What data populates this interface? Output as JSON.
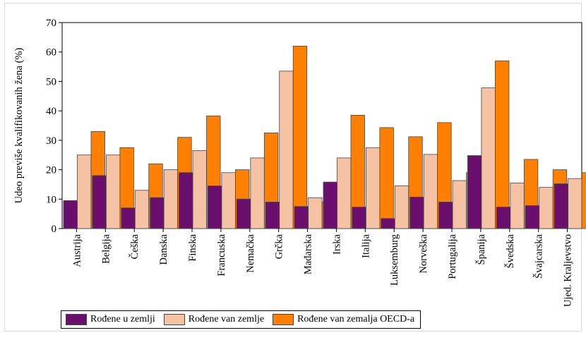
{
  "chart_data": {
    "type": "bar",
    "ylabel": "Udeo previše kvalifikovanih žena (%)",
    "ylim": [
      0,
      70
    ],
    "yticks": [
      0,
      10,
      20,
      30,
      40,
      50,
      60,
      70
    ],
    "grid": false,
    "legend_position": "bottom",
    "categories": [
      "Austrija",
      "Belgija",
      "Češka",
      "Danska",
      "Finska",
      "Francuska",
      "Nemačka",
      "Grčka",
      "Mađarska",
      "Irska",
      "Italija",
      "Luksemburg",
      "Norveška",
      "Portugalija",
      "Španija",
      "Švedska",
      "Švajcarska",
      "Ujed. Kraljevstvo"
    ],
    "series": [
      {
        "name": "Rođene u zemlji",
        "color": "#6a0f6e",
        "values": [
          9.5,
          18,
          7,
          10.5,
          19,
          14.5,
          10,
          9,
          7.5,
          15.8,
          7.3,
          3.4,
          10.7,
          9,
          24.8,
          7.3,
          7.8,
          15.2
        ]
      },
      {
        "name": "Rođene van zemlje",
        "color": "#f5c2a4",
        "values": [
          25,
          25,
          13,
          20,
          26.5,
          19,
          24,
          53.5,
          10.5,
          24,
          27.5,
          14.5,
          25.2,
          16.3,
          47.8,
          15.5,
          14,
          17
        ]
      },
      {
        "name": "Rođene van zemalja OECD-a",
        "color": "#ff8000",
        "values": [
          33,
          27.5,
          22,
          31,
          38.3,
          20,
          32.5,
          62,
          9,
          38.5,
          34.3,
          31.2,
          36,
          19,
          57,
          23.5,
          20,
          19
        ]
      }
    ]
  }
}
